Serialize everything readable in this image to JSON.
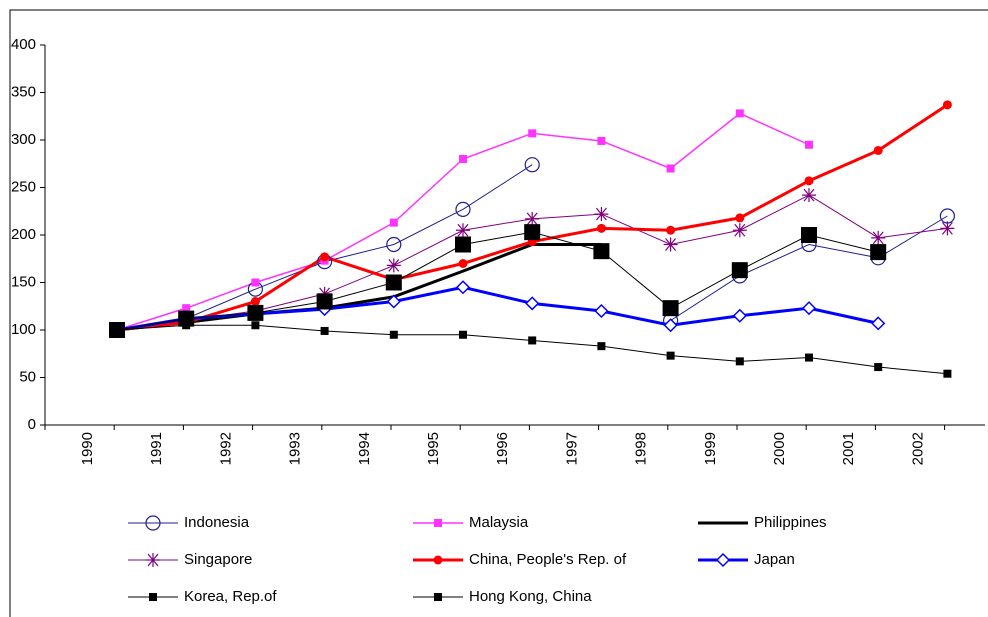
{
  "chart_data": {
    "type": "line",
    "categories": [
      "1990",
      "1991",
      "1992",
      "1993",
      "1994",
      "1995",
      "1996",
      "1997",
      "1998",
      "1999",
      "2000",
      "2001",
      "2002"
    ],
    "ylim": [
      0,
      400
    ],
    "yticks": [
      0,
      50,
      100,
      150,
      200,
      250,
      300,
      350,
      400
    ],
    "series": [
      {
        "name": "Indonesia",
        "color": "#1f1f8f",
        "marker": "circle-open",
        "line_width": 1,
        "values": [
          100,
          112,
          143,
          172,
          190,
          227,
          274,
          null,
          110,
          157,
          190,
          176,
          220
        ]
      },
      {
        "name": "Malaysia",
        "color": "#ff33ff",
        "marker": "square",
        "line_width": 1.5,
        "values": [
          100,
          123,
          150,
          173,
          213,
          280,
          307,
          299,
          270,
          328,
          295,
          null,
          null
        ]
      },
      {
        "name": "Philippines",
        "color": "#000000",
        "marker": "none",
        "line_width": 3,
        "values": [
          100,
          108,
          117,
          123,
          135,
          162,
          190,
          190,
          null,
          null,
          null,
          null,
          null
        ]
      },
      {
        "name": "Singapore",
        "color": "#800080",
        "marker": "asterisk",
        "line_width": 1,
        "values": [
          100,
          110,
          120,
          138,
          168,
          205,
          217,
          222,
          190,
          205,
          242,
          197,
          207
        ]
      },
      {
        "name": "China, People's Rep. of",
        "color": "#ff0000",
        "marker": "circle",
        "line_width": 3,
        "values": [
          100,
          108,
          130,
          177,
          153,
          170,
          193,
          207,
          205,
          218,
          257,
          289,
          337
        ]
      },
      {
        "name": "Japan",
        "color": "#0000ff",
        "marker": "diamond-open",
        "line_width": 3,
        "values": [
          100,
          112,
          117,
          122,
          130,
          145,
          128,
          120,
          105,
          115,
          123,
          107,
          null
        ]
      },
      {
        "name": "Korea, Rep.of",
        "color": "#000000",
        "marker": "square",
        "line_width": 1,
        "values": [
          100,
          105,
          105,
          99,
          95,
          95,
          89,
          83,
          73,
          67,
          71,
          61,
          54
        ]
      },
      {
        "name": "Hong Kong, China",
        "color": "#000000",
        "marker": "square-large",
        "line_width": 1,
        "values": [
          100,
          112,
          118,
          130,
          150,
          190,
          203,
          183,
          123,
          163,
          200,
          182,
          null
        ]
      }
    ]
  }
}
